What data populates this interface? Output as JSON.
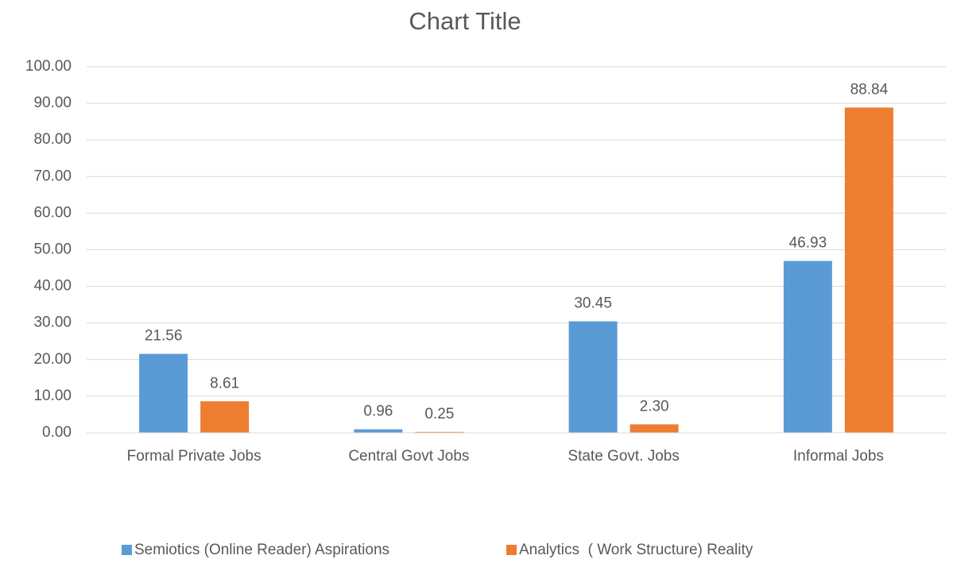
{
  "chart_data": {
    "type": "bar",
    "title": "Chart Title",
    "categories": [
      "Formal Private Jobs",
      "Central Govt Jobs",
      "State Govt. Jobs",
      "Informal Jobs"
    ],
    "series": [
      {
        "name": "Semiotics (Online Reader) Aspirations",
        "color": "#5b9bd5",
        "values": [
          21.56,
          0.96,
          30.45,
          46.93
        ],
        "value_labels": [
          "21.56",
          "0.96",
          "30.45",
          "46.93"
        ]
      },
      {
        "name": "Analytics  ( Work Structure) Reality",
        "color": "#ed7d31",
        "values": [
          8.61,
          0.25,
          2.3,
          88.84
        ],
        "value_labels": [
          "8.61",
          "0.25",
          "2.30",
          "88.84"
        ]
      }
    ],
    "ylim": [
      0,
      100
    ],
    "yticks": [
      {
        "value": 0,
        "label": "0.00"
      },
      {
        "value": 10,
        "label": "10.00"
      },
      {
        "value": 20,
        "label": "20.00"
      },
      {
        "value": 30,
        "label": "30.00"
      },
      {
        "value": 40,
        "label": "40.00"
      },
      {
        "value": 50,
        "label": "50.00"
      },
      {
        "value": 60,
        "label": "60.00"
      },
      {
        "value": 70,
        "label": "70.00"
      },
      {
        "value": 80,
        "label": "80.00"
      },
      {
        "value": 90,
        "label": "90.00"
      },
      {
        "value": 100,
        "label": "100.00"
      }
    ],
    "grid": true,
    "legend": "bottom"
  }
}
